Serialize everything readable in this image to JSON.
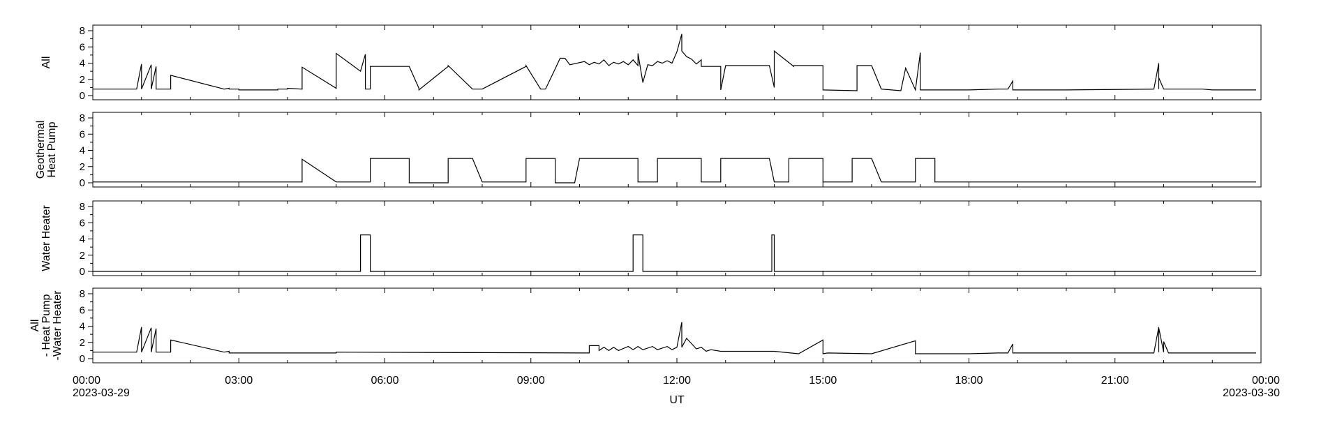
{
  "chart_data": [
    {
      "type": "line",
      "ylabel": [
        "All"
      ],
      "ylim": [
        0,
        8
      ],
      "yticks": [
        "0",
        "2",
        "4",
        "6",
        "8"
      ],
      "series": [
        {
          "x": [
            0,
            0.9,
            1.0,
            1.0,
            1.2,
            1.2,
            1.3,
            1.3,
            1.6,
            1.6,
            2.7,
            2.7,
            2.8,
            2.8,
            3.0,
            3.0,
            3.8,
            3.8,
            4.0,
            4.0,
            4.3,
            4.3,
            5.0,
            5.0,
            5.5,
            5.6,
            5.6,
            5.7,
            5.7,
            6.5,
            6.7,
            6.7,
            7.3,
            7.3,
            7.8,
            8.0,
            8.9,
            8.9,
            9.2,
            9.3,
            9.5,
            9.6,
            9.7,
            9.8,
            10.1,
            10.2,
            10.3,
            10.4,
            10.5,
            10.6,
            10.7,
            10.8,
            10.9,
            11.0,
            11.1,
            11.2,
            11.2,
            11.3,
            11.4,
            11.5,
            11.6,
            11.7,
            11.8,
            11.9,
            12.0,
            12.1,
            12.1,
            12.2,
            12.3,
            12.4,
            12.5,
            12.5,
            12.9,
            12.9,
            13.0,
            13.9,
            14.0,
            14.0,
            14.4,
            14.4,
            15.0,
            15.0,
            15.7,
            15.7,
            16.0,
            16.2,
            16.6,
            16.7,
            16.9,
            17.0,
            17.0,
            17.1,
            17.3,
            17.8,
            18.0,
            18.6,
            18.8,
            18.9,
            18.9,
            19.0,
            19.0,
            19.8,
            20.0,
            21.8,
            21.9,
            21.9,
            21.9,
            22.0,
            22.0,
            22.1,
            22.1,
            22.8,
            23.0,
            23.9
          ],
          "y": [
            0.8,
            0.8,
            3.9,
            0.8,
            3.8,
            0.8,
            3.6,
            0.8,
            0.8,
            2.5,
            0.8,
            0.8,
            0.9,
            0.8,
            0.8,
            0.7,
            0.7,
            0.8,
            0.8,
            0.9,
            0.8,
            3.5,
            0.9,
            5.2,
            3.0,
            5.1,
            0.8,
            0.8,
            3.6,
            3.6,
            0.9,
            0.7,
            3.6,
            3.7,
            0.8,
            0.8,
            3.6,
            3.7,
            0.8,
            0.8,
            3.3,
            4.6,
            4.6,
            3.8,
            4.2,
            3.8,
            4.1,
            3.9,
            4.4,
            3.7,
            4.1,
            3.9,
            4.2,
            3.8,
            4.4,
            3.7,
            5.2,
            1.6,
            3.8,
            3.7,
            4.2,
            4.0,
            4.3,
            4.0,
            5.4,
            7.6,
            5.5,
            4.8,
            4.5,
            3.9,
            4.4,
            3.6,
            3.6,
            0.7,
            3.7,
            3.7,
            1.0,
            5.5,
            3.6,
            3.7,
            3.7,
            0.7,
            0.6,
            3.7,
            3.7,
            0.8,
            0.6,
            3.4,
            0.7,
            5.3,
            0.7,
            0.7,
            0.7,
            0.7,
            0.7,
            0.8,
            0.8,
            1.8,
            0.7,
            0.7,
            0.7,
            0.7,
            0.7,
            0.8,
            4.0,
            0.8,
            2.2,
            0.8,
            0.8,
            0.8,
            0.8,
            0.8,
            0.7,
            0.7
          ]
        }
      ]
    },
    {
      "type": "line",
      "ylabel": [
        "Geothermal",
        "Heat Pump"
      ],
      "ylim": [
        0,
        8
      ],
      "yticks": [
        "0",
        "2",
        "4",
        "6",
        "8"
      ],
      "series": [
        {
          "x": [
            0,
            4.3,
            4.3,
            5.0,
            5.7,
            5.7,
            6.5,
            6.5,
            7.3,
            7.3,
            7.8,
            8.0,
            8.9,
            8.9,
            9.5,
            9.5,
            9.9,
            10.0,
            10.1,
            10.2,
            10.9,
            11.0,
            11.1,
            11.2,
            11.2,
            11.6,
            11.6,
            12.0,
            12.4,
            12.5,
            12.5,
            12.9,
            12.9,
            13.9,
            14.0,
            14.3,
            14.3,
            15.0,
            15.0,
            15.6,
            15.6,
            16.0,
            16.2,
            16.9,
            16.9,
            17.3,
            17.3,
            18.0,
            23.9
          ],
          "y": [
            0.1,
            0.1,
            2.9,
            0.1,
            0.1,
            3.0,
            3.0,
            0.0,
            0.0,
            3.0,
            3.0,
            0.1,
            0.1,
            3.0,
            3.0,
            0.0,
            0.0,
            3.0,
            3.0,
            3.0,
            3.0,
            3.0,
            3.0,
            3.0,
            0.1,
            0.1,
            3.0,
            3.0,
            3.0,
            3.0,
            0.1,
            0.1,
            3.0,
            3.0,
            0.1,
            0.1,
            3.0,
            3.0,
            0.1,
            0.1,
            3.0,
            3.0,
            0.1,
            0.1,
            3.0,
            3.0,
            0.1,
            0.1,
            0.1
          ]
        }
      ]
    },
    {
      "type": "line",
      "ylabel": [
        "Water Heater"
      ],
      "ylim": [
        0,
        8
      ],
      "yticks": [
        "0",
        "2",
        "4",
        "6",
        "8"
      ],
      "series": [
        {
          "x": [
            0,
            5.5,
            5.5,
            5.7,
            5.7,
            11.1,
            11.1,
            11.3,
            11.3,
            13.95,
            13.95,
            14.0,
            14.0,
            23.9
          ],
          "y": [
            0.0,
            0.0,
            4.5,
            4.5,
            0.0,
            0.0,
            4.5,
            4.5,
            0.0,
            0.0,
            4.5,
            4.5,
            0.0,
            0.0
          ]
        }
      ]
    },
    {
      "type": "line",
      "ylabel": [
        "All",
        "- Heat Pump",
        "-Water Heater"
      ],
      "ylim": [
        0,
        8
      ],
      "yticks": [
        "0",
        "2",
        "4",
        "6",
        "8"
      ],
      "series": [
        {
          "x": [
            0,
            0.9,
            1.0,
            1.0,
            1.2,
            1.2,
            1.3,
            1.3,
            1.6,
            1.6,
            2.7,
            2.7,
            2.8,
            2.8,
            5.0,
            5.0,
            10.1,
            10.2,
            10.2,
            10.4,
            10.4,
            10.5,
            10.6,
            10.7,
            10.8,
            11.0,
            11.1,
            11.2,
            11.3,
            11.5,
            11.6,
            11.8,
            11.9,
            12.0,
            12.1,
            12.1,
            12.2,
            12.4,
            12.5,
            12.6,
            12.7,
            12.9,
            13.0,
            14.0,
            14.5,
            15.0,
            15.0,
            15.1,
            16.0,
            16.9,
            16.9,
            17.0,
            17.4,
            18.0,
            18.6,
            18.8,
            18.9,
            18.9,
            19.0,
            19.0,
            21.8,
            21.9,
            21.9,
            21.9,
            22.0,
            22.0,
            22.1,
            22.1,
            23.9
          ],
          "y": [
            0.8,
            0.8,
            3.9,
            0.8,
            3.8,
            0.8,
            3.7,
            0.8,
            0.8,
            2.3,
            0.8,
            0.8,
            0.9,
            0.7,
            0.7,
            0.8,
            0.7,
            0.7,
            1.6,
            1.6,
            1.0,
            1.4,
            1.0,
            1.4,
            1.0,
            1.5,
            1.1,
            1.5,
            1.1,
            1.5,
            1.1,
            1.5,
            1.1,
            1.4,
            4.5,
            1.4,
            2.5,
            1.2,
            1.4,
            0.9,
            1.1,
            0.9,
            0.9,
            0.9,
            0.6,
            2.3,
            0.6,
            0.7,
            0.6,
            2.2,
            0.6,
            0.6,
            0.6,
            0.6,
            0.7,
            0.7,
            1.8,
            0.7,
            0.7,
            0.7,
            0.7,
            3.9,
            0.8,
            3.8,
            0.8,
            2.1,
            0.7,
            0.7,
            0.7
          ]
        }
      ]
    }
  ],
  "xaxis": {
    "label": "UT",
    "xlim": [
      0,
      24
    ],
    "ticks": [
      {
        "h": 0,
        "time": "00:00",
        "date": "2023-03-29"
      },
      {
        "h": 3,
        "time": "03:00",
        "date": ""
      },
      {
        "h": 6,
        "time": "06:00",
        "date": ""
      },
      {
        "h": 9,
        "time": "09:00",
        "date": ""
      },
      {
        "h": 12,
        "time": "12:00",
        "date": ""
      },
      {
        "h": 15,
        "time": "15:00",
        "date": ""
      },
      {
        "h": 18,
        "time": "18:00",
        "date": ""
      },
      {
        "h": 21,
        "time": "21:00",
        "date": ""
      },
      {
        "h": 24,
        "time": "00:00",
        "date": "2023-03-30"
      }
    ]
  }
}
